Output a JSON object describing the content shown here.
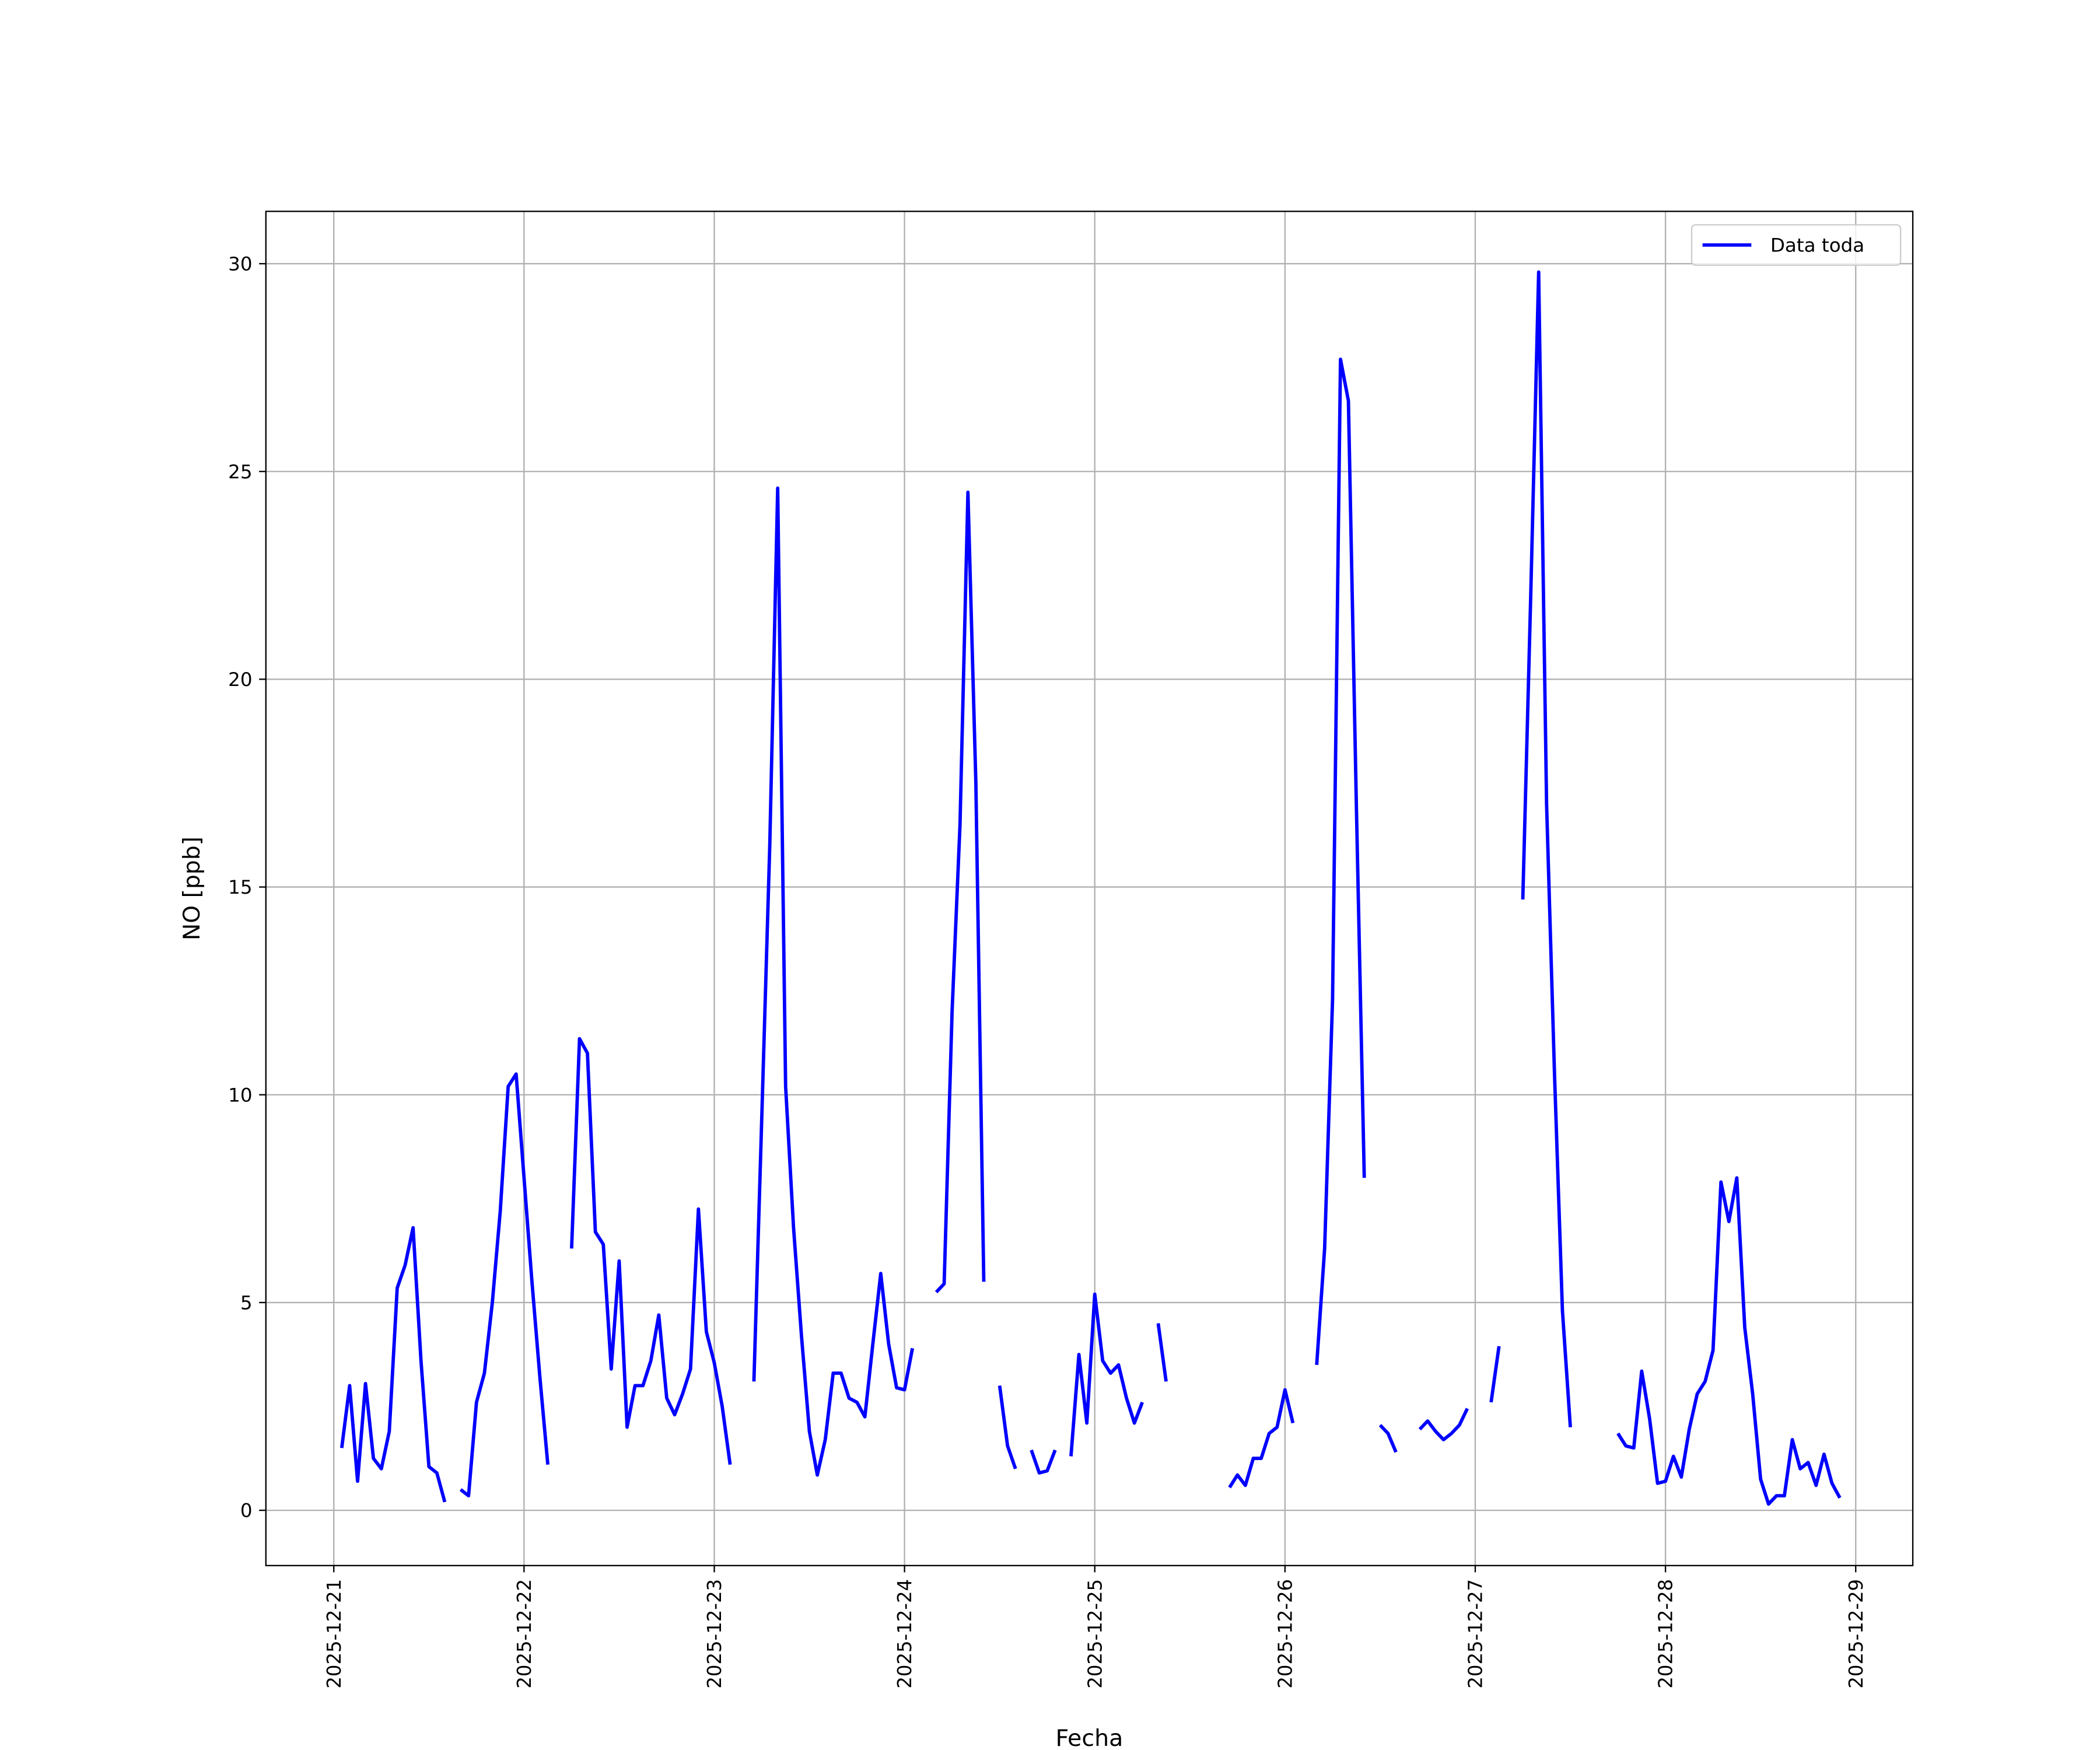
{
  "chart_data": {
    "type": "line",
    "x_label": "Fecha",
    "y_label": "NO [ppb]",
    "x": [
      "2025-12-21 01:00",
      "2025-12-21 02:00",
      "2025-12-21 03:00",
      "2025-12-21 04:00",
      "2025-12-21 05:00",
      "2025-12-21 06:00",
      "2025-12-21 07:00",
      "2025-12-21 08:00",
      "2025-12-21 09:00",
      "2025-12-21 10:00",
      "2025-12-21 11:00",
      "2025-12-21 12:00",
      "2025-12-21 13:00",
      "2025-12-21 14:00",
      "2025-12-21 15:00",
      "2025-12-21 16:00",
      "2025-12-21 17:00",
      "2025-12-21 18:00",
      "2025-12-21 19:00",
      "2025-12-21 20:00",
      "2025-12-21 21:00",
      "2025-12-21 22:00",
      "2025-12-21 23:00",
      "2025-12-22 00:00",
      "2025-12-22 01:00",
      "2025-12-22 02:00",
      "2025-12-22 03:00",
      "2025-12-22 04:00",
      "2025-12-22 05:00",
      "2025-12-22 06:00",
      "2025-12-22 07:00",
      "2025-12-22 08:00",
      "2025-12-22 09:00",
      "2025-12-22 10:00",
      "2025-12-22 11:00",
      "2025-12-22 12:00",
      "2025-12-22 13:00",
      "2025-12-22 14:00",
      "2025-12-22 15:00",
      "2025-12-22 16:00",
      "2025-12-22 17:00",
      "2025-12-22 18:00",
      "2025-12-22 19:00",
      "2025-12-22 20:00",
      "2025-12-22 21:00",
      "2025-12-22 22:00",
      "2025-12-22 23:00",
      "2025-12-23 00:00",
      "2025-12-23 01:00",
      "2025-12-23 02:00",
      "2025-12-23 03:00",
      "2025-12-23 04:00",
      "2025-12-23 05:00",
      "2025-12-23 06:00",
      "2025-12-23 07:00",
      "2025-12-23 08:00",
      "2025-12-23 09:00",
      "2025-12-23 10:00",
      "2025-12-23 11:00",
      "2025-12-23 12:00",
      "2025-12-23 13:00",
      "2025-12-23 14:00",
      "2025-12-23 15:00",
      "2025-12-23 16:00",
      "2025-12-23 17:00",
      "2025-12-23 18:00",
      "2025-12-23 19:00",
      "2025-12-23 20:00",
      "2025-12-23 21:00",
      "2025-12-23 22:00",
      "2025-12-23 23:00",
      "2025-12-24 00:00",
      "2025-12-24 01:00",
      "2025-12-24 02:00",
      "2025-12-24 03:00",
      "2025-12-24 04:00",
      "2025-12-24 05:00",
      "2025-12-24 06:00",
      "2025-12-24 07:00",
      "2025-12-24 08:00",
      "2025-12-24 09:00",
      "2025-12-24 10:00",
      "2025-12-24 11:00",
      "2025-12-24 12:00",
      "2025-12-24 13:00",
      "2025-12-24 14:00",
      "2025-12-24 15:00",
      "2025-12-24 16:00",
      "2025-12-24 17:00",
      "2025-12-24 18:00",
      "2025-12-24 19:00",
      "2025-12-24 20:00",
      "2025-12-24 21:00",
      "2025-12-24 22:00",
      "2025-12-24 23:00",
      "2025-12-25 00:00",
      "2025-12-25 01:00",
      "2025-12-25 02:00",
      "2025-12-25 03:00",
      "2025-12-25 04:00",
      "2025-12-25 05:00",
      "2025-12-25 06:00",
      "2025-12-25 07:00",
      "2025-12-25 08:00",
      "2025-12-25 09:00",
      "2025-12-25 10:00",
      "2025-12-25 11:00",
      "2025-12-25 12:00",
      "2025-12-25 13:00",
      "2025-12-25 14:00",
      "2025-12-25 15:00",
      "2025-12-25 16:00",
      "2025-12-25 17:00",
      "2025-12-25 18:00",
      "2025-12-25 19:00",
      "2025-12-25 20:00",
      "2025-12-25 21:00",
      "2025-12-25 22:00",
      "2025-12-25 23:00",
      "2025-12-26 00:00",
      "2025-12-26 01:00",
      "2025-12-26 02:00",
      "2025-12-26 03:00",
      "2025-12-26 04:00",
      "2025-12-26 05:00",
      "2025-12-26 06:00",
      "2025-12-26 07:00",
      "2025-12-26 08:00",
      "2025-12-26 09:00",
      "2025-12-26 10:00",
      "2025-12-26 11:00",
      "2025-12-26 12:00",
      "2025-12-26 13:00",
      "2025-12-26 14:00",
      "2025-12-26 15:00",
      "2025-12-26 16:00",
      "2025-12-26 17:00",
      "2025-12-26 18:00",
      "2025-12-26 19:00",
      "2025-12-26 20:00",
      "2025-12-26 21:00",
      "2025-12-26 22:00",
      "2025-12-26 23:00",
      "2025-12-27 00:00",
      "2025-12-27 01:00",
      "2025-12-27 02:00",
      "2025-12-27 03:00",
      "2025-12-27 04:00",
      "2025-12-27 05:00",
      "2025-12-27 06:00",
      "2025-12-27 07:00",
      "2025-12-27 08:00",
      "2025-12-27 09:00",
      "2025-12-27 10:00",
      "2025-12-27 11:00",
      "2025-12-27 12:00",
      "2025-12-27 13:00",
      "2025-12-27 14:00",
      "2025-12-27 15:00",
      "2025-12-27 16:00",
      "2025-12-27 17:00",
      "2025-12-27 18:00",
      "2025-12-27 19:00",
      "2025-12-27 20:00",
      "2025-12-27 21:00",
      "2025-12-27 22:00",
      "2025-12-27 23:00",
      "2025-12-28 00:00",
      "2025-12-28 01:00",
      "2025-12-28 02:00",
      "2025-12-28 03:00",
      "2025-12-28 04:00",
      "2025-12-28 05:00",
      "2025-12-28 06:00",
      "2025-12-28 07:00",
      "2025-12-28 08:00",
      "2025-12-28 09:00",
      "2025-12-28 10:00",
      "2025-12-28 11:00",
      "2025-12-28 12:00",
      "2025-12-28 13:00",
      "2025-12-28 14:00",
      "2025-12-28 15:00",
      "2025-12-28 16:00",
      "2025-12-28 17:00",
      "2025-12-28 18:00",
      "2025-12-28 19:00",
      "2025-12-28 20:00",
      "2025-12-28 21:00",
      "2025-12-28 22:00"
    ],
    "series": [
      {
        "name": "Data toda",
        "color": "#0000ff",
        "values": [
          1.5,
          3.0,
          0.7,
          3.05,
          1.25,
          1.0,
          1.9,
          5.35,
          5.9,
          6.8,
          3.6,
          1.05,
          0.9,
          0.2,
          null,
          0.5,
          0.35,
          2.6,
          3.3,
          5.0,
          7.2,
          10.2,
          10.5,
          8.0,
          5.5,
          3.2,
          1.1,
          null,
          null,
          6.3,
          11.35,
          11.0,
          6.7,
          6.4,
          3.4,
          6.0,
          2.0,
          3.0,
          3.0,
          3.6,
          4.7,
          2.7,
          2.3,
          2.8,
          3.4,
          7.25,
          4.3,
          3.55,
          2.5,
          1.1,
          null,
          null,
          3.1,
          9.5,
          16.0,
          24.6,
          10.2,
          6.8,
          4.2,
          1.9,
          0.85,
          1.7,
          3.3,
          3.3,
          2.7,
          2.6,
          2.25,
          4.0,
          5.7,
          4.0,
          2.95,
          2.9,
          3.9,
          null,
          null,
          5.25,
          5.45,
          12.0,
          16.5,
          24.5,
          17.5,
          5.5,
          null,
          3.0,
          1.55,
          1.0,
          null,
          1.45,
          0.9,
          0.95,
          1.45,
          null,
          1.3,
          3.75,
          2.1,
          5.2,
          3.6,
          3.3,
          3.5,
          2.7,
          2.1,
          2.6,
          null,
          4.5,
          3.1,
          null,
          null,
          null,
          null,
          null,
          null,
          null,
          0.55,
          0.85,
          0.6,
          1.25,
          1.25,
          1.85,
          2.0,
          2.9,
          2.1,
          null,
          null,
          3.5,
          6.3,
          12.3,
          27.7,
          26.7,
          17.0,
          8.0,
          null,
          2.05,
          1.85,
          1.4,
          null,
          null,
          1.95,
          2.15,
          1.9,
          1.7,
          1.85,
          2.05,
          2.45,
          null,
          null,
          2.6,
          3.95,
          null,
          null,
          14.7,
          22.0,
          29.8,
          17.0,
          10.5,
          4.8,
          2.0,
          null,
          null,
          null,
          null,
          null,
          1.85,
          1.55,
          1.5,
          3.35,
          2.2,
          0.65,
          0.7,
          1.3,
          0.8,
          1.95,
          2.8,
          3.1,
          3.85,
          7.9,
          6.95,
          8.0,
          4.4,
          2.8,
          0.75,
          0.15,
          0.35,
          0.35,
          1.7,
          1.0,
          1.15,
          0.6,
          1.35,
          0.65,
          0.3
        ]
      }
    ],
    "xlim": [
      "2025-12-20 15:26",
      "2025-12-29 07:12"
    ],
    "xticks": [
      "2025-12-21",
      "2025-12-22",
      "2025-12-23",
      "2025-12-24",
      "2025-12-25",
      "2025-12-26",
      "2025-12-27",
      "2025-12-28",
      "2025-12-29"
    ],
    "ylim": [
      -1.33,
      31.26
    ],
    "yticks": [
      0,
      5,
      10,
      15,
      20,
      25,
      30
    ],
    "grid": true,
    "legend": "upper right"
  }
}
